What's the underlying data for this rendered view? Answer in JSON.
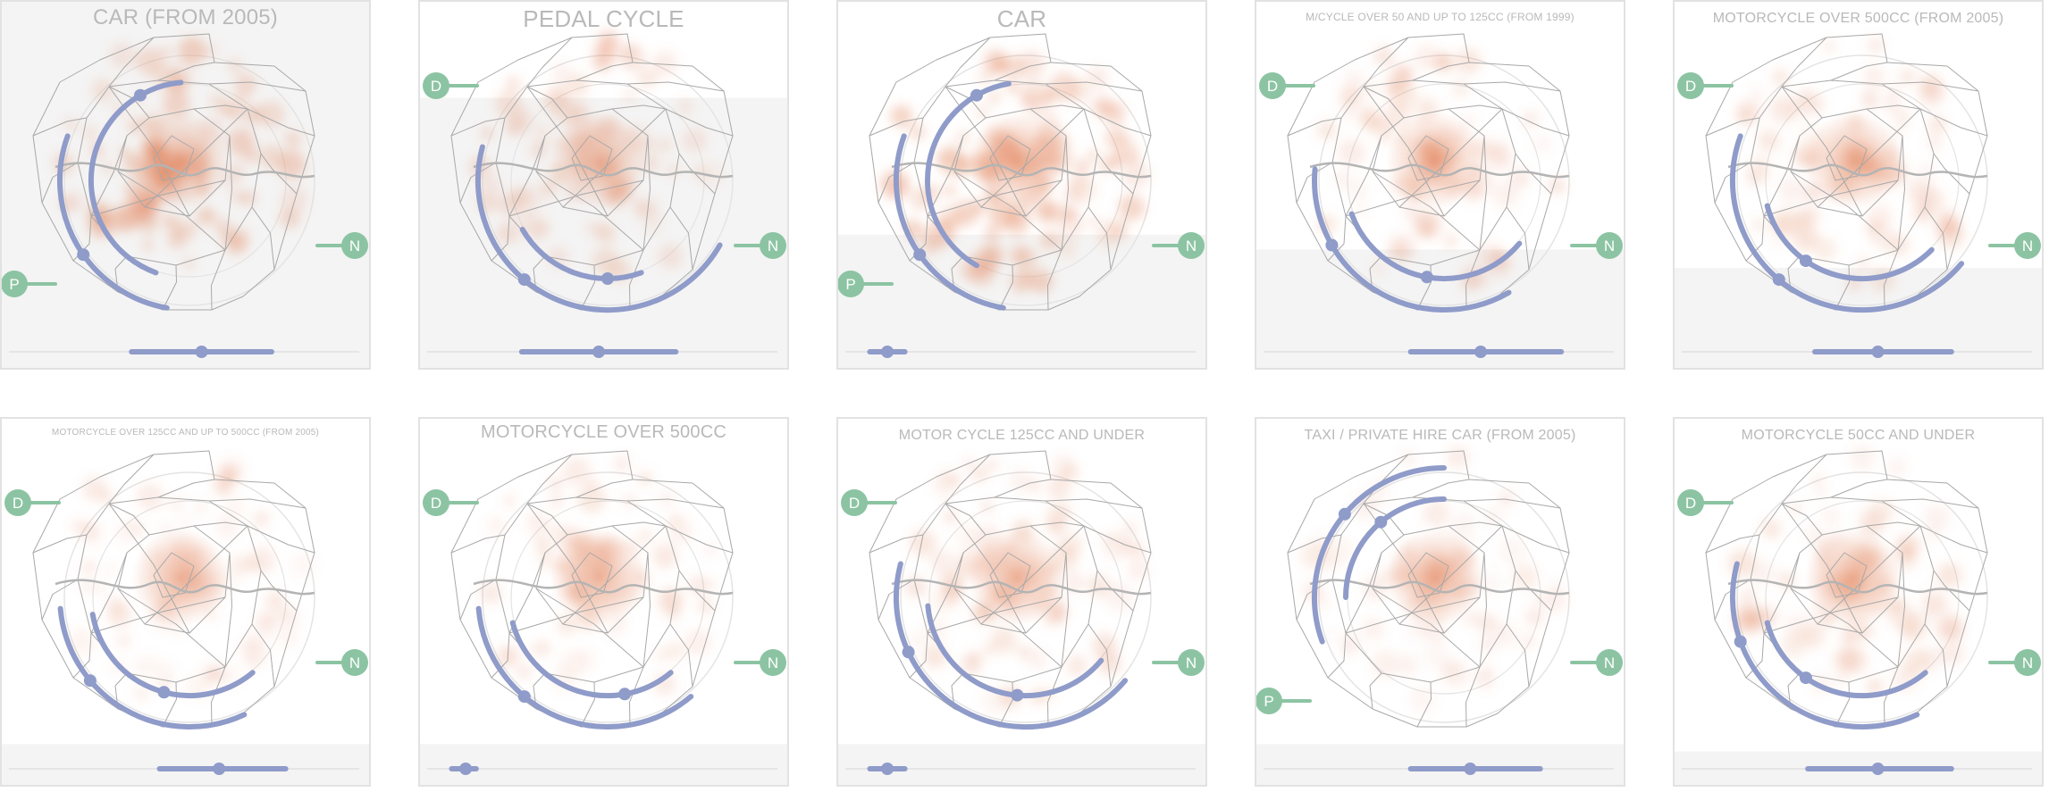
{
  "colors": {
    "arc": "#8f9bc9",
    "badge": "#8cc4a3",
    "badge_text": "#ffffff",
    "heat": "#e07a4f",
    "borough_line": "#a8a8a8",
    "thames": "#b4b4b4",
    "guide_circle": "#e4e4e4",
    "shade": "#f4f4f4",
    "panel_border": "#e2e2e2",
    "title": "#b9b9b9",
    "slider_track": "#e0e0e0"
  },
  "chart_data": [
    {
      "type": "radial-map",
      "title": "CAR (FROM 2005)",
      "badges": [
        "P",
        "N"
      ],
      "badge_letters": {
        "P": "P",
        "N": "N",
        "D": "D"
      },
      "shade_level": 1.0,
      "slider": {
        "min": 0.35,
        "max": 0.75,
        "handle": 0.55
      },
      "inner_arc": {
        "start": 200,
        "end": 355,
        "handle": 330
      },
      "outer_arc": {
        "start": 190,
        "end": 290,
        "handle": 235
      },
      "heat_intensity": 0.9
    },
    {
      "type": "radial-map",
      "title": "PEDAL CYCLE",
      "badges": [
        "D",
        "N"
      ],
      "badge_letters": {
        "P": "P",
        "N": "N",
        "D": "D"
      },
      "shade_level": 0.74,
      "slider": {
        "min": 0.27,
        "max": 0.71,
        "handle": 0.49
      },
      "inner_arc": {
        "start": 160,
        "end": 240,
        "handle": 180
      },
      "outer_arc": {
        "start": 120,
        "end": 285,
        "handle": 220
      },
      "heat_intensity": 0.55
    },
    {
      "type": "radial-map",
      "title": "CAR",
      "badges": [
        "P",
        "N"
      ],
      "badge_letters": {
        "P": "P",
        "N": "N",
        "D": "D"
      },
      "shade_level": 0.37,
      "slider": {
        "min": 0.07,
        "max": 0.17,
        "handle": 0.12
      },
      "inner_arc": {
        "start": 210,
        "end": 350,
        "handle": 330
      },
      "outer_arc": {
        "start": 190,
        "end": 290,
        "handle": 235
      },
      "heat_intensity": 0.9
    },
    {
      "type": "radial-map",
      "title": "M/CYCLE OVER 50 AND UP TO 125CC (FROM 1999)",
      "badges": [
        "D",
        "N"
      ],
      "badge_letters": {
        "P": "P",
        "N": "N",
        "D": "D"
      },
      "shade_level": 0.33,
      "slider": {
        "min": 0.42,
        "max": 0.85,
        "handle": 0.62
      },
      "inner_arc": {
        "start": 130,
        "end": 250,
        "handle": 190
      },
      "outer_arc": {
        "start": 150,
        "end": 275,
        "handle": 240
      },
      "heat_intensity": 0.55
    },
    {
      "type": "radial-map",
      "title": "MOTORCYCLE OVER 500CC (FROM 2005)",
      "badges": [
        "D",
        "N"
      ],
      "badge_letters": {
        "P": "P",
        "N": "N",
        "D": "D"
      },
      "shade_level": 0.28,
      "slider": {
        "min": 0.38,
        "max": 0.77,
        "handle": 0.56
      },
      "inner_arc": {
        "start": 135,
        "end": 255,
        "handle": 215
      },
      "outer_arc": {
        "start": 130,
        "end": 290,
        "handle": 220
      },
      "heat_intensity": 0.55
    },
    {
      "type": "radial-map",
      "title": "MOTORCYCLE OVER 125CC AND UP TO 500CC (FROM 2005)",
      "badges": [
        "D",
        "N"
      ],
      "badge_letters": {
        "P": "P",
        "N": "N",
        "D": "D"
      },
      "shade_level": 0.12,
      "slider": {
        "min": 0.43,
        "max": 0.79,
        "handle": 0.6
      },
      "inner_arc": {
        "start": 140,
        "end": 260,
        "handle": 195
      },
      "outer_arc": {
        "start": 155,
        "end": 265,
        "handle": 230
      },
      "heat_intensity": 0.45
    },
    {
      "type": "radial-map",
      "title": "MOTORCYCLE OVER 500CC",
      "badges": [
        "D",
        "N"
      ],
      "badge_letters": {
        "P": "P",
        "N": "N",
        "D": "D"
      },
      "shade_level": 0.12,
      "slider": {
        "min": 0.07,
        "max": 0.14,
        "handle": 0.11
      },
      "inner_arc": {
        "start": 140,
        "end": 255,
        "handle": 170
      },
      "outer_arc": {
        "start": 140,
        "end": 265,
        "handle": 220
      },
      "heat_intensity": 0.5
    },
    {
      "type": "radial-map",
      "title": "MOTOR CYCLE 125CC AND UNDER",
      "badges": [
        "D",
        "N"
      ],
      "badge_letters": {
        "P": "P",
        "N": "N",
        "D": "D"
      },
      "shade_level": 0.12,
      "slider": {
        "min": 0.07,
        "max": 0.17,
        "handle": 0.12
      },
      "inner_arc": {
        "start": 130,
        "end": 265,
        "handle": 185
      },
      "outer_arc": {
        "start": 130,
        "end": 285,
        "handle": 245
      },
      "heat_intensity": 0.6
    },
    {
      "type": "radial-map",
      "title": "TAXI / PRIVATE HIRE CAR (FROM 2005)",
      "badges": [
        "P",
        "N"
      ],
      "badge_letters": {
        "P": "P",
        "N": "N",
        "D": "D"
      },
      "shade_level": 0.12,
      "slider": {
        "min": 0.42,
        "max": 0.79,
        "handle": 0.59
      },
      "inner_arc": {
        "start": 270,
        "end": 360,
        "handle": 320
      },
      "outer_arc": {
        "start": 250,
        "end": 360,
        "handle": 310
      },
      "heat_intensity": 0.4
    },
    {
      "type": "radial-map",
      "title": "MOTORCYCLE 50CC AND UNDER",
      "badges": [
        "D",
        "N"
      ],
      "badge_letters": {
        "P": "P",
        "N": "N",
        "D": "D"
      },
      "shade_level": 0.1,
      "slider": {
        "min": 0.36,
        "max": 0.77,
        "handle": 0.56
      },
      "inner_arc": {
        "start": 140,
        "end": 255,
        "handle": 215
      },
      "outer_arc": {
        "start": 155,
        "end": 285,
        "handle": 250
      },
      "heat_intensity": 0.5
    }
  ]
}
